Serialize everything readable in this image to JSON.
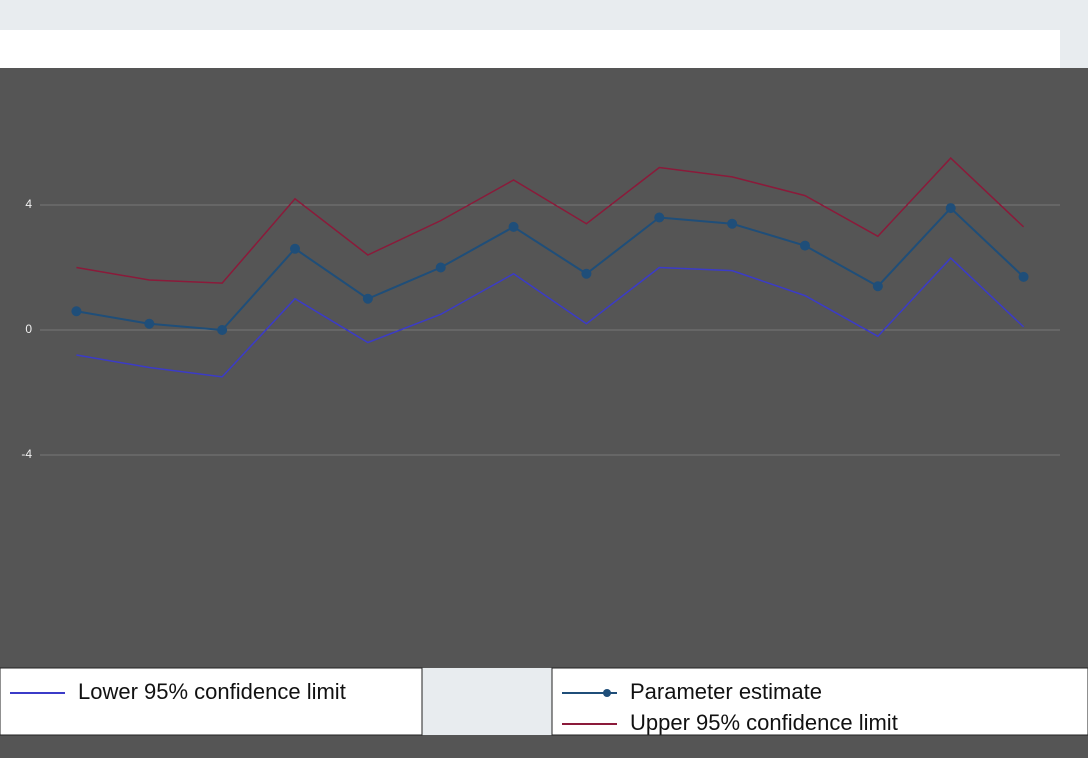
{
  "chart_data": {
    "type": "line",
    "categories": [
      null,
      null,
      null,
      null,
      null,
      null,
      null,
      null,
      null,
      null,
      null,
      null,
      null,
      null
    ],
    "series": [
      {
        "name": "Lower 95% confidence limit",
        "color": "#3b3bc8",
        "values": [
          -0.8,
          -1.2,
          -1.5,
          1.0,
          -0.4,
          0.5,
          1.8,
          0.2,
          2.0,
          1.9,
          1.1,
          -0.2,
          2.3,
          0.1
        ]
      },
      {
        "name": "Parameter estimate",
        "color": "#1f4e79",
        "values": [
          0.6,
          0.2,
          0,
          2.6,
          1.0,
          2.0,
          3.3,
          1.8,
          3.6,
          3.4,
          2.7,
          1.4,
          3.9,
          1.7
        ]
      },
      {
        "name": "Upper 95% confidence limit",
        "color": "#8b1a3a",
        "values": [
          2.0,
          1.6,
          1.5,
          4.2,
          2.4,
          3.5,
          4.8,
          3.4,
          5.2,
          4.9,
          4.3,
          3.0,
          5.5,
          3.3
        ]
      }
    ],
    "ylim": [
      -8,
      8
    ],
    "yticks": [
      -4,
      0,
      4
    ],
    "grid": true
  }
}
